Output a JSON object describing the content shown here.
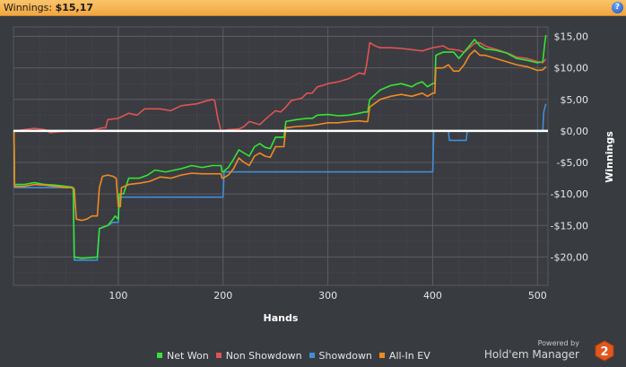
{
  "window": {
    "title_label": "Winnings:",
    "title_value": "$15,17"
  },
  "legend": {
    "items": [
      {
        "label": "Net Won",
        "color": "#33e633"
      },
      {
        "label": "Non Showdown",
        "color": "#e05353"
      },
      {
        "label": "Showdown",
        "color": "#3f8fd8"
      },
      {
        "label": "All-In EV",
        "color": "#f08a24"
      }
    ]
  },
  "branding": {
    "powered_by": "Powered by",
    "product": "Hold'em Manager",
    "logo_text": "2"
  },
  "chart_data": {
    "type": "line",
    "xlabel": "Hands",
    "ylabel": "Winnings",
    "xlim": [
      0,
      510
    ],
    "ylim": [
      -24.5,
      16.5
    ],
    "x_ticks": [
      100,
      200,
      300,
      400,
      500
    ],
    "y_ticks": [
      {
        "v": 15,
        "label": "$15,00"
      },
      {
        "v": 10,
        "label": "$10,00"
      },
      {
        "v": 5,
        "label": "$5,00"
      },
      {
        "v": 0,
        "label": "$0,00"
      },
      {
        "v": -5,
        "label": "-$5,00"
      },
      {
        "v": -10,
        "label": "-$10,00"
      },
      {
        "v": -15,
        "label": "-$15,00"
      },
      {
        "v": -20,
        "label": "-$20,00"
      }
    ],
    "grid": true,
    "zero_line": true,
    "legend_position": "bottom",
    "series": [
      {
        "name": "Non Showdown",
        "color": "#e05353",
        "points": [
          [
            0,
            0
          ],
          [
            2,
            0
          ],
          [
            10,
            0.2
          ],
          [
            20,
            0.4
          ],
          [
            30,
            0.2
          ],
          [
            35,
            -0.3
          ],
          [
            45,
            -0.1
          ],
          [
            60,
            0
          ],
          [
            75,
            0.1
          ],
          [
            85,
            0.5
          ],
          [
            88,
            0.5
          ],
          [
            90,
            1.8
          ],
          [
            100,
            2
          ],
          [
            110,
            2.8
          ],
          [
            118,
            2.5
          ],
          [
            125,
            3.5
          ],
          [
            140,
            3.5
          ],
          [
            150,
            3.2
          ],
          [
            160,
            4
          ],
          [
            175,
            4.3
          ],
          [
            185,
            4.8
          ],
          [
            190,
            5
          ],
          [
            192,
            4.8
          ],
          [
            195,
            2
          ],
          [
            198,
            0
          ],
          [
            205,
            0.2
          ],
          [
            215,
            0.3
          ],
          [
            220,
            0.7
          ],
          [
            225,
            1.5
          ],
          [
            235,
            1
          ],
          [
            240,
            1.8
          ],
          [
            245,
            2.5
          ],
          [
            250,
            3.2
          ],
          [
            255,
            3
          ],
          [
            260,
            3.8
          ],
          [
            265,
            4.8
          ],
          [
            275,
            5.2
          ],
          [
            280,
            6
          ],
          [
            285,
            6
          ],
          [
            290,
            7
          ],
          [
            295,
            7.2
          ],
          [
            300,
            7.5
          ],
          [
            310,
            7.8
          ],
          [
            320,
            8.3
          ],
          [
            330,
            9.2
          ],
          [
            335,
            9
          ],
          [
            337,
            10.5
          ],
          [
            340,
            14
          ],
          [
            345,
            13.5
          ],
          [
            350,
            13.2
          ],
          [
            360,
            13.2
          ],
          [
            370,
            13.1
          ],
          [
            380,
            12.9
          ],
          [
            385,
            12.8
          ],
          [
            390,
            12.7
          ],
          [
            400,
            13.2
          ],
          [
            410,
            13.5
          ],
          [
            415,
            13
          ],
          [
            425,
            12.8
          ],
          [
            430,
            12.5
          ],
          [
            435,
            13.2
          ],
          [
            440,
            13.9
          ],
          [
            445,
            14
          ],
          [
            450,
            13.5
          ],
          [
            455,
            13.2
          ],
          [
            465,
            12.7
          ],
          [
            475,
            12.1
          ],
          [
            480,
            11.7
          ],
          [
            490,
            11.5
          ],
          [
            500,
            11
          ],
          [
            505,
            10.8
          ],
          [
            508,
            11.4
          ]
        ]
      },
      {
        "name": "Showdown",
        "color": "#3f8fd8",
        "points": [
          [
            0,
            0
          ],
          [
            0.5,
            0
          ],
          [
            1,
            -9
          ],
          [
            15,
            -9
          ],
          [
            30,
            -9
          ],
          [
            45,
            -9
          ],
          [
            55,
            -9
          ],
          [
            57,
            -9
          ],
          [
            58,
            -20.5
          ],
          [
            65,
            -20.5
          ],
          [
            75,
            -20.5
          ],
          [
            80,
            -20.5
          ],
          [
            82,
            -15.5
          ],
          [
            90,
            -15
          ],
          [
            95,
            -14.5
          ],
          [
            97,
            -14.5
          ],
          [
            100,
            -14.5
          ],
          [
            101,
            -10.5
          ],
          [
            115,
            -10.5
          ],
          [
            140,
            -10.5
          ],
          [
            180,
            -10.5
          ],
          [
            198,
            -10.5
          ],
          [
            200,
            -10.5
          ],
          [
            201,
            -6.5
          ],
          [
            215,
            -6.5
          ],
          [
            240,
            -6.5
          ],
          [
            280,
            -6.5
          ],
          [
            320,
            -6.5
          ],
          [
            360,
            -6.5
          ],
          [
            395,
            -6.5
          ],
          [
            400,
            -6.5
          ],
          [
            401,
            0
          ],
          [
            410,
            0
          ],
          [
            415,
            0
          ],
          [
            416,
            -1.5
          ],
          [
            425,
            -1.5
          ],
          [
            432,
            -1.5
          ],
          [
            433,
            0
          ],
          [
            450,
            0
          ],
          [
            480,
            0
          ],
          [
            500,
            0
          ],
          [
            505,
            0
          ],
          [
            506,
            3
          ],
          [
            508,
            4.3
          ]
        ]
      },
      {
        "name": "Net Won",
        "color": "#33e633",
        "points": [
          [
            0,
            0
          ],
          [
            0.5,
            0
          ],
          [
            1,
            -8.5
          ],
          [
            10,
            -8.5
          ],
          [
            20,
            -8.2
          ],
          [
            30,
            -8.5
          ],
          [
            40,
            -8.6
          ],
          [
            50,
            -8.8
          ],
          [
            55,
            -8.9
          ],
          [
            57,
            -9
          ],
          [
            58,
            -20
          ],
          [
            65,
            -20.2
          ],
          [
            75,
            -20.1
          ],
          [
            80,
            -20
          ],
          [
            82,
            -15.5
          ],
          [
            90,
            -15
          ],
          [
            95,
            -14
          ],
          [
            97,
            -13.5
          ],
          [
            100,
            -14
          ],
          [
            101,
            -10
          ],
          [
            105,
            -10
          ],
          [
            110,
            -7.5
          ],
          [
            120,
            -7.5
          ],
          [
            128,
            -7
          ],
          [
            135,
            -6.2
          ],
          [
            145,
            -6.5
          ],
          [
            160,
            -6
          ],
          [
            170,
            -5.5
          ],
          [
            180,
            -5.8
          ],
          [
            190,
            -5.5
          ],
          [
            198,
            -5.5
          ],
          [
            199,
            -6.5
          ],
          [
            200,
            -6.5
          ],
          [
            205,
            -5.8
          ],
          [
            210,
            -4.5
          ],
          [
            215,
            -3
          ],
          [
            220,
            -3.5
          ],
          [
            225,
            -4
          ],
          [
            230,
            -2.5
          ],
          [
            235,
            -2
          ],
          [
            240,
            -2.6
          ],
          [
            245,
            -2.8
          ],
          [
            250,
            -1
          ],
          [
            258,
            -1
          ],
          [
            260,
            1.5
          ],
          [
            270,
            1.8
          ],
          [
            280,
            2
          ],
          [
            285,
            2
          ],
          [
            290,
            2.5
          ],
          [
            300,
            2.6
          ],
          [
            310,
            2.4
          ],
          [
            320,
            2.5
          ],
          [
            330,
            2.8
          ],
          [
            335,
            3
          ],
          [
            338,
            3
          ],
          [
            340,
            5
          ],
          [
            350,
            6.5
          ],
          [
            360,
            7.2
          ],
          [
            370,
            7.5
          ],
          [
            380,
            7
          ],
          [
            385,
            7.5
          ],
          [
            390,
            7.8
          ],
          [
            395,
            7
          ],
          [
            400,
            7.5
          ],
          [
            402,
            7.5
          ],
          [
            403,
            12
          ],
          [
            410,
            12.5
          ],
          [
            420,
            12.5
          ],
          [
            425,
            11.5
          ],
          [
            430,
            12.5
          ],
          [
            435,
            13.5
          ],
          [
            440,
            14.5
          ],
          [
            445,
            13.5
          ],
          [
            450,
            13
          ],
          [
            460,
            12.8
          ],
          [
            470,
            12.4
          ],
          [
            480,
            11.5
          ],
          [
            490,
            11.2
          ],
          [
            500,
            10.8
          ],
          [
            505,
            11
          ],
          [
            507,
            14
          ],
          [
            508,
            15.2
          ]
        ]
      },
      {
        "name": "All-In EV",
        "color": "#f08a24",
        "points": [
          [
            0,
            0
          ],
          [
            0.5,
            0
          ],
          [
            1,
            -8.8
          ],
          [
            10,
            -8.8
          ],
          [
            20,
            -8.5
          ],
          [
            30,
            -8.6
          ],
          [
            40,
            -8.8
          ],
          [
            50,
            -9
          ],
          [
            55,
            -9
          ],
          [
            58,
            -9.2
          ],
          [
            60,
            -14
          ],
          [
            65,
            -14.2
          ],
          [
            70,
            -14
          ],
          [
            75,
            -13.5
          ],
          [
            80,
            -13.5
          ],
          [
            82,
            -9
          ],
          [
            85,
            -7.2
          ],
          [
            90,
            -7
          ],
          [
            95,
            -7.2
          ],
          [
            98,
            -7.5
          ],
          [
            100,
            -12
          ],
          [
            102,
            -12
          ],
          [
            103,
            -9
          ],
          [
            110,
            -8.5
          ],
          [
            120,
            -8.3
          ],
          [
            130,
            -8
          ],
          [
            140,
            -7.3
          ],
          [
            150,
            -7.5
          ],
          [
            160,
            -7
          ],
          [
            170,
            -6.7
          ],
          [
            180,
            -6.8
          ],
          [
            190,
            -6.8
          ],
          [
            198,
            -6.8
          ],
          [
            199,
            -7.5
          ],
          [
            200,
            -7.5
          ],
          [
            205,
            -7
          ],
          [
            210,
            -6
          ],
          [
            215,
            -4.3
          ],
          [
            220,
            -5
          ],
          [
            225,
            -5.5
          ],
          [
            230,
            -4
          ],
          [
            235,
            -3.5
          ],
          [
            240,
            -4
          ],
          [
            245,
            -4.2
          ],
          [
            250,
            -2.5
          ],
          [
            258,
            -2.5
          ],
          [
            260,
            0.5
          ],
          [
            270,
            0.7
          ],
          [
            280,
            0.8
          ],
          [
            290,
            1
          ],
          [
            300,
            1.3
          ],
          [
            310,
            1.3
          ],
          [
            320,
            1.5
          ],
          [
            330,
            1.6
          ],
          [
            335,
            1.5
          ],
          [
            338,
            1.5
          ],
          [
            340,
            3.8
          ],
          [
            350,
            5
          ],
          [
            360,
            5.5
          ],
          [
            370,
            5.8
          ],
          [
            380,
            5.5
          ],
          [
            390,
            6
          ],
          [
            395,
            5.5
          ],
          [
            400,
            6
          ],
          [
            402,
            6
          ],
          [
            403,
            10
          ],
          [
            410,
            10
          ],
          [
            415,
            10.5
          ],
          [
            420,
            9.5
          ],
          [
            425,
            9.5
          ],
          [
            430,
            10.5
          ],
          [
            435,
            12
          ],
          [
            440,
            12.8
          ],
          [
            445,
            12
          ],
          [
            450,
            12
          ],
          [
            460,
            11.5
          ],
          [
            470,
            11
          ],
          [
            480,
            10.5
          ],
          [
            490,
            10.2
          ],
          [
            500,
            9.6
          ],
          [
            505,
            9.7
          ],
          [
            508,
            10.2
          ]
        ]
      }
    ]
  }
}
